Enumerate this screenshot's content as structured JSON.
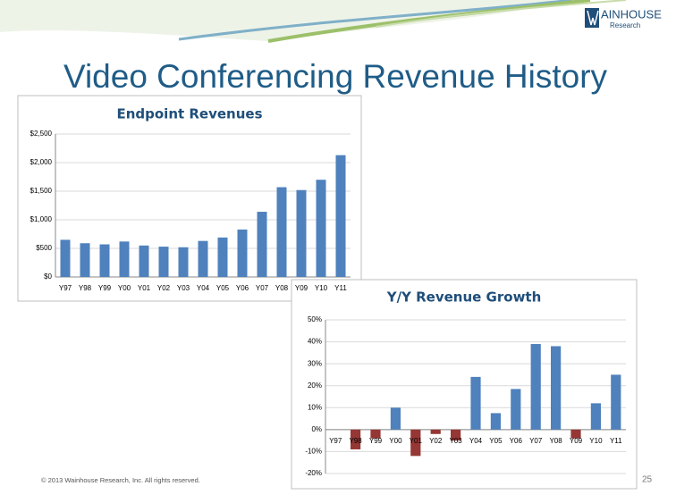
{
  "slide": {
    "title": "Video Conferencing Revenue History",
    "logo_main": "AINHOUSE",
    "logo_sub": "Research",
    "footer": "© 2013 Wainhouse Research, Inc. All rights reserved.",
    "page_number": "25"
  },
  "chart_data": [
    {
      "type": "bar",
      "title": "Endpoint Revenues",
      "categories": [
        "Y97",
        "Y98",
        "Y99",
        "Y00",
        "Y01",
        "Y02",
        "Y03",
        "Y04",
        "Y05",
        "Y06",
        "Y07",
        "Y08",
        "Y09",
        "Y10",
        "Y11"
      ],
      "values": [
        650,
        590,
        570,
        620,
        550,
        530,
        520,
        630,
        690,
        830,
        1140,
        1570,
        1520,
        1700,
        2130
      ],
      "color": "#4f81bd",
      "negative_color": "#953735",
      "ylim": [
        0,
        2500
      ],
      "yticks": [
        {
          "value": 0,
          "label": "$0"
        },
        {
          "value": 500,
          "label": "$500"
        },
        {
          "value": 1000,
          "label": "$1,000"
        },
        {
          "value": 1500,
          "label": "$1,500"
        },
        {
          "value": 2000,
          "label": "$2,000"
        },
        {
          "value": 2500,
          "label": "$2,500"
        }
      ],
      "grid": true
    },
    {
      "type": "bar",
      "title": "Y/Y Revenue Growth",
      "categories": [
        "Y97",
        "Y98",
        "Y99",
        "Y00",
        "Y01",
        "Y02",
        "Y03",
        "Y04",
        "Y05",
        "Y06",
        "Y07",
        "Y08",
        "Y09",
        "Y10",
        "Y11"
      ],
      "values": [
        null,
        -9,
        -4,
        10,
        -12,
        -2,
        -5,
        24,
        7.5,
        18.5,
        39,
        38,
        -4,
        12,
        25
      ],
      "color": "#4f81bd",
      "negative_color": "#953735",
      "ylim": [
        -20,
        50
      ],
      "yticks": [
        {
          "value": -20,
          "label": "-20%"
        },
        {
          "value": -10,
          "label": "-10%"
        },
        {
          "value": 0,
          "label": "0%"
        },
        {
          "value": 10,
          "label": "10%"
        },
        {
          "value": 20,
          "label": "20%"
        },
        {
          "value": 30,
          "label": "30%"
        },
        {
          "value": 40,
          "label": "40%"
        },
        {
          "value": 50,
          "label": "50%"
        }
      ],
      "grid": true
    }
  ]
}
